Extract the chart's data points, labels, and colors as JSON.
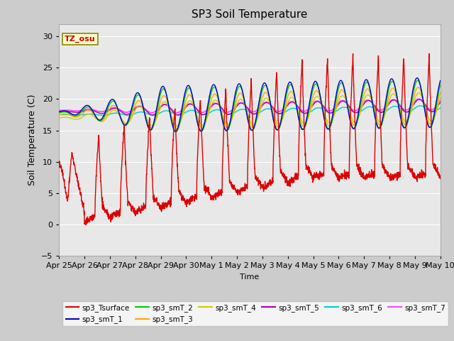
{
  "title": "SP3 Soil Temperature",
  "ylabel": "Soil Temperature (C)",
  "xlabel": "Time",
  "tz_label": "TZ_osu",
  "ylim": [
    -5,
    32
  ],
  "yticks": [
    -5,
    0,
    5,
    10,
    15,
    20,
    25,
    30
  ],
  "series_colors": {
    "sp3_Tsurface": "#dd0000",
    "sp3_smT_1": "#0000cc",
    "sp3_smT_2": "#00cc00",
    "sp3_smT_3": "#ffaa00",
    "sp3_smT_4": "#cccc00",
    "sp3_smT_5": "#aa00aa",
    "sp3_smT_6": "#00cccc",
    "sp3_smT_7": "#ff44ff"
  },
  "x_tick_labels": [
    "Apr 25",
    "Apr 26",
    "Apr 27",
    "Apr 28",
    "Apr 29",
    "Apr 30",
    "May 1",
    "May 2",
    "May 3",
    "May 4",
    "May 5",
    "May 6",
    "May 7",
    "May 8",
    "May 9",
    "May 10"
  ],
  "x_tick_positions": [
    0,
    24,
    48,
    72,
    96,
    120,
    144,
    168,
    192,
    216,
    240,
    264,
    288,
    312,
    336,
    360
  ]
}
